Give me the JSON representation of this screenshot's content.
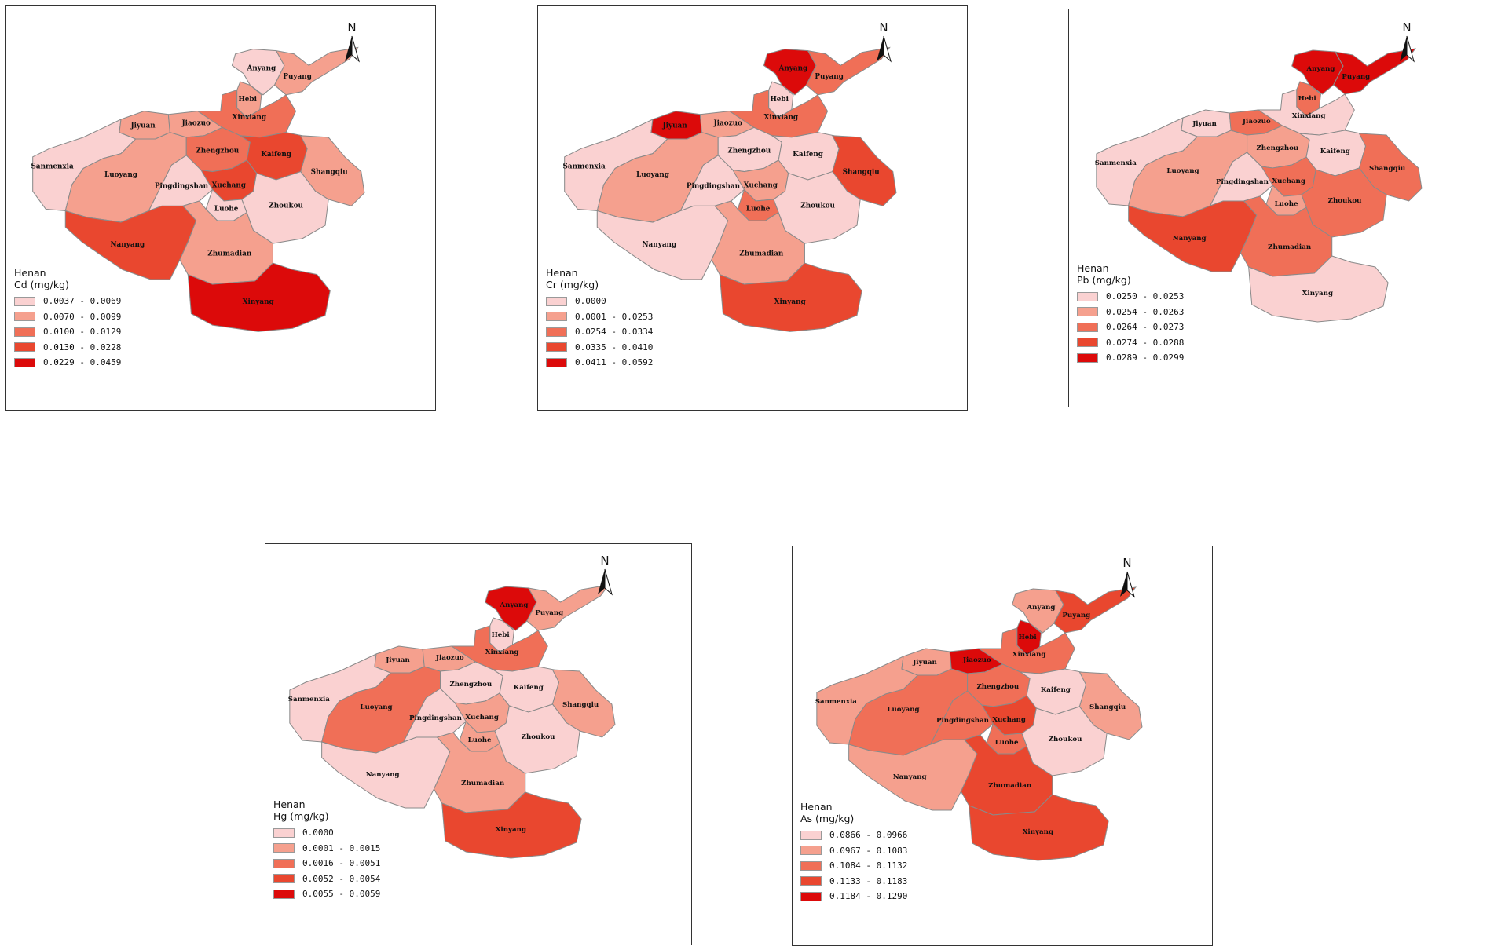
{
  "colors": {
    "c1": "#fad1d1",
    "c2": "#f5a08e",
    "c3": "#f06f57",
    "c4": "#e9472f",
    "c5": "#dc0a0a"
  },
  "city_names": {
    "anyang": "Anyang",
    "hebi": "Hebi",
    "puyang": "Puyang",
    "jiyuan": "Jiyuan",
    "jiaozuo": "Jiaozuo",
    "xinxiang": "Xinxiang",
    "sanmenxia": "Sanmenxia",
    "luoyang": "Luoyang",
    "zhengzhou": "Zhengzhou",
    "kaifeng": "Kaifeng",
    "shangqiu": "Shangqiu",
    "pingdingshan": "Pingdingshan",
    "xuchang": "Xuchang",
    "luohe": "Luohe",
    "zhoukou": "Zhoukou",
    "nanyang": "Nanyang",
    "zhumadian": "Zhumadian",
    "xinyang": "Xinyang"
  },
  "maps": [
    {
      "id": "cd",
      "north": "N",
      "legend": {
        "region": "Henan",
        "title": "Cd (mg/kg)",
        "classes": [
          "0.0037 - 0.0069",
          "0.0070 - 0.0099",
          "0.0100 - 0.0129",
          "0.0130 - 0.0228",
          "0.0229 - 0.0459"
        ]
      },
      "classes": {
        "sanmenxia": 1,
        "luoyang": 2,
        "jiyuan": 2,
        "jiaozuo": 2,
        "xinxiang": 3,
        "anyang": 1,
        "hebi": 2,
        "puyang": 2,
        "zhengzhou": 3,
        "kaifeng": 4,
        "shangqiu": 2,
        "pingdingshan": 1,
        "xuchang": 4,
        "luohe": 1,
        "zhoukou": 1,
        "nanyang": 4,
        "zhumadian": 2,
        "xinyang": 5
      }
    },
    {
      "id": "cr",
      "north": "N",
      "legend": {
        "region": "Henan",
        "title": "Cr (mg/kg)",
        "classes": [
          "0.0000",
          "0.0001 - 0.0253",
          "0.0254 - 0.0334",
          "0.0335 - 0.0410",
          "0.0411 - 0.0592"
        ]
      },
      "classes": {
        "sanmenxia": 1,
        "luoyang": 2,
        "jiyuan": 5,
        "jiaozuo": 2,
        "xinxiang": 3,
        "anyang": 5,
        "hebi": 1,
        "puyang": 3,
        "zhengzhou": 1,
        "kaifeng": 1,
        "shangqiu": 4,
        "pingdingshan": 1,
        "xuchang": 2,
        "luohe": 3,
        "zhoukou": 1,
        "nanyang": 1,
        "zhumadian": 2,
        "xinyang": 4
      }
    },
    {
      "id": "pb",
      "north": "N",
      "legend": {
        "region": "Henan",
        "title": "Pb (mg/kg)",
        "classes": [
          "0.0250 - 0.0253",
          "0.0254 - 0.0263",
          "0.0264 - 0.0273",
          "0.0274 - 0.0288",
          "0.0289 - 0.0299"
        ]
      },
      "classes": {
        "sanmenxia": 1,
        "luoyang": 2,
        "jiyuan": 1,
        "jiaozuo": 3,
        "xinxiang": 1,
        "anyang": 5,
        "hebi": 3,
        "puyang": 5,
        "zhengzhou": 2,
        "kaifeng": 1,
        "shangqiu": 3,
        "pingdingshan": 1,
        "xuchang": 3,
        "luohe": 2,
        "zhoukou": 3,
        "nanyang": 4,
        "zhumadian": 3,
        "xinyang": 1
      }
    },
    {
      "id": "hg",
      "north": "N",
      "legend": {
        "region": "Henan",
        "title": "Hg (mg/kg)",
        "classes": [
          "0.0000",
          "0.0001 - 0.0015",
          "0.0016 - 0.0051",
          "0.0052 - 0.0054",
          "0.0055 - 0.0059"
        ]
      },
      "classes": {
        "sanmenxia": 1,
        "luoyang": 3,
        "jiyuan": 2,
        "jiaozuo": 2,
        "xinxiang": 3,
        "anyang": 5,
        "hebi": 1,
        "puyang": 2,
        "zhengzhou": 1,
        "kaifeng": 1,
        "shangqiu": 2,
        "pingdingshan": 1,
        "xuchang": 2,
        "luohe": 2,
        "zhoukou": 1,
        "nanyang": 1,
        "zhumadian": 2,
        "xinyang": 4
      }
    },
    {
      "id": "as",
      "north": "N",
      "legend": {
        "region": "Henan",
        "title": "As (mg/kg)",
        "classes": [
          "0.0866 - 0.0966",
          "0.0967 - 0.1083",
          "0.1084 - 0.1132",
          "0.1133 - 0.1183",
          "0.1184 - 0.1290"
        ]
      },
      "classes": {
        "sanmenxia": 2,
        "luoyang": 3,
        "jiyuan": 2,
        "jiaozuo": 5,
        "xinxiang": 3,
        "anyang": 2,
        "hebi": 5,
        "puyang": 4,
        "zhengzhou": 3,
        "kaifeng": 1,
        "shangqiu": 2,
        "pingdingshan": 3,
        "xuchang": 4,
        "luohe": 3,
        "zhoukou": 1,
        "nanyang": 2,
        "zhumadian": 4,
        "xinyang": 4
      }
    }
  ]
}
